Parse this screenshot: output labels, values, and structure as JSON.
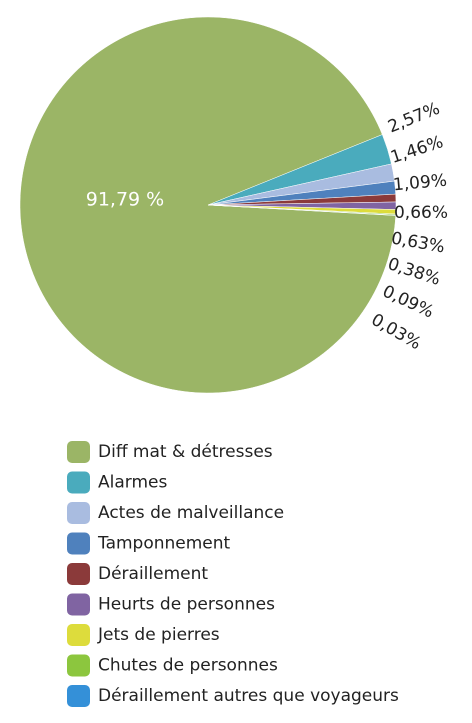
{
  "chart_data": {
    "type": "pie",
    "categories": [
      "Diff mat & détresses",
      "Alarmes",
      "Actes de malveillance",
      "Tamponnement",
      "Déraillement",
      "Heurts de personnes",
      "Jets de pierres",
      "Chutes de personnes",
      "Déraillement autres que voyageurs"
    ],
    "values": [
      91.79,
      2.57,
      1.46,
      1.09,
      0.66,
      0.63,
      0.38,
      0.09,
      0.03
    ],
    "value_labels": [
      "91,79 %",
      "2,57%",
      "1,46%",
      "1,09%",
      "0,66%",
      "0,63%",
      "0,38%",
      "0,09%",
      "0,03%"
    ],
    "colors": [
      "#9bb566",
      "#4aabbd",
      "#a9bce0",
      "#4f81bd",
      "#8b3a3a",
      "#8064a2",
      "#dddc3c",
      "#8cc63e",
      "#3490d8"
    ]
  }
}
